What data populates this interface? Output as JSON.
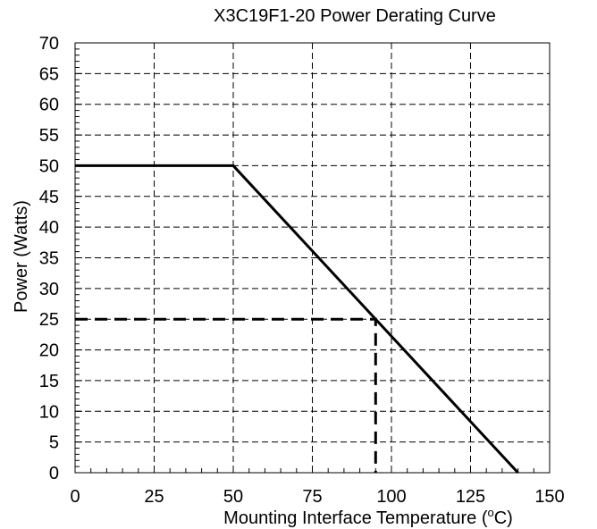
{
  "chart_data": {
    "type": "line",
    "title": "X3C19F1-20 Power Derating Curve",
    "xlabel": {
      "prefix": "Mounting Interface Temperature (",
      "sup": "o",
      "suffix": "C)"
    },
    "ylabel": "Power (Watts)",
    "xlim": [
      0,
      150
    ],
    "ylim": [
      0,
      70
    ],
    "xticks": [
      0,
      25,
      50,
      75,
      100,
      125,
      150
    ],
    "yticks": [
      0,
      5,
      10,
      15,
      20,
      25,
      30,
      35,
      40,
      45,
      50,
      55,
      60,
      65,
      70
    ],
    "x_minor_step": 5,
    "y_minor_step": 1,
    "grid": true,
    "series": [
      {
        "style": "solid",
        "color": "#000000",
        "x": [
          0,
          50,
          140
        ],
        "y": [
          50,
          50,
          0
        ]
      },
      {
        "style": "dashed",
        "color": "#000000",
        "x": [
          0,
          95,
          95
        ],
        "y": [
          25,
          25,
          0
        ]
      }
    ]
  }
}
